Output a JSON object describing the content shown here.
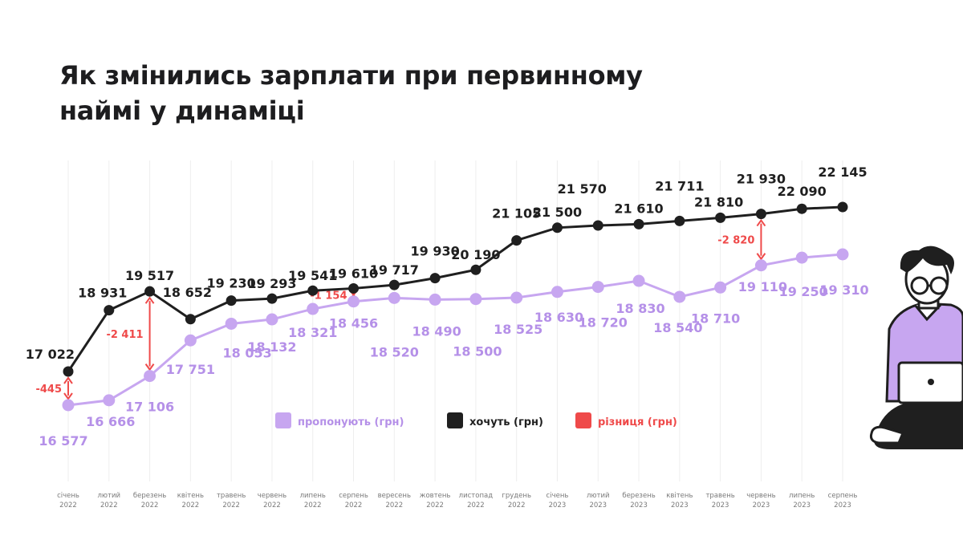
{
  "title_line1": "Як змінились зарплати при первинному",
  "title_line2": "наймі у динаміці",
  "colors": {
    "offer": "#c7a6f0",
    "offer_label": "#b590e8",
    "want": "#1f1f1f",
    "diff": "#ef4a4a",
    "guide": "#eeeeee"
  },
  "legend": [
    {
      "key": "offer",
      "label": "пропонують (грн)"
    },
    {
      "key": "want",
      "label": "хочуть (грн)"
    },
    {
      "key": "diff",
      "label": "різниця (грн)"
    }
  ],
  "chart_data": {
    "type": "line",
    "title": "Як змінились зарплати при первинному наймі у динаміці",
    "x": [
      [
        "січень",
        "2022"
      ],
      [
        "лютий",
        "2022"
      ],
      [
        "березень",
        "2022"
      ],
      [
        "квітень",
        "2022"
      ],
      [
        "травень",
        "2022"
      ],
      [
        "червень",
        "2022"
      ],
      [
        "липень",
        "2022"
      ],
      [
        "серпень",
        "2022"
      ],
      [
        "вересень",
        "2022"
      ],
      [
        "жовтень",
        "2022"
      ],
      [
        "листопад",
        "2022"
      ],
      [
        "грудень",
        "2022"
      ],
      [
        "січень",
        "2023"
      ],
      [
        "лютий",
        "2023"
      ],
      [
        "березень",
        "2023"
      ],
      [
        "квітень",
        "2023"
      ],
      [
        "травень",
        "2023"
      ],
      [
        "червень",
        "2023"
      ],
      [
        "липень",
        "2023"
      ],
      [
        "серпень",
        "2023"
      ]
    ],
    "series": [
      {
        "name": "хочуть (грн)",
        "key": "want",
        "values": [
          17022,
          18931,
          19517,
          18652,
          19230,
          19293,
          19541,
          19610,
          19717,
          19930,
          20190,
          21105,
          21500,
          21570,
          21610,
          21711,
          21810,
          21930,
          22090,
          22145
        ],
        "labels": [
          "17 022",
          "18 931",
          "19 517",
          "18 652",
          "19 230",
          "19 293",
          "19 541",
          "19 610",
          "19 717",
          "19 930",
          "20 190",
          "21 105",
          "21 500",
          "21 570",
          "21 610",
          "21 711",
          "21 810",
          "21 930",
          "22 090",
          "22 145"
        ]
      },
      {
        "name": "пропонують (грн)",
        "key": "offer",
        "values": [
          16577,
          16666,
          17106,
          17751,
          18053,
          18132,
          18321,
          18456,
          18520,
          18490,
          18500,
          18525,
          18630,
          18720,
          18830,
          18540,
          18710,
          19110,
          19250,
          19310
        ],
        "labels": [
          "16 577",
          "16 666",
          "17 106",
          "17 751",
          "18 053",
          "18 132",
          "18 321",
          "18 456",
          "18 520",
          "18 490",
          "18 500",
          "18 525",
          "18 630",
          "18 720",
          "18 830",
          "18 540",
          "18 710",
          "19 110",
          "19 250",
          "19 310"
        ]
      }
    ],
    "differences": [
      {
        "index": 0,
        "value": -445,
        "label": "-445"
      },
      {
        "index": 2,
        "value": -2411,
        "label": "-2 411"
      },
      {
        "index": 7,
        "value": -1154,
        "label": "-1 154"
      },
      {
        "index": 17,
        "value": -2820,
        "label": "-2 820"
      }
    ],
    "legend_position": "bottom-center",
    "grid": false
  }
}
